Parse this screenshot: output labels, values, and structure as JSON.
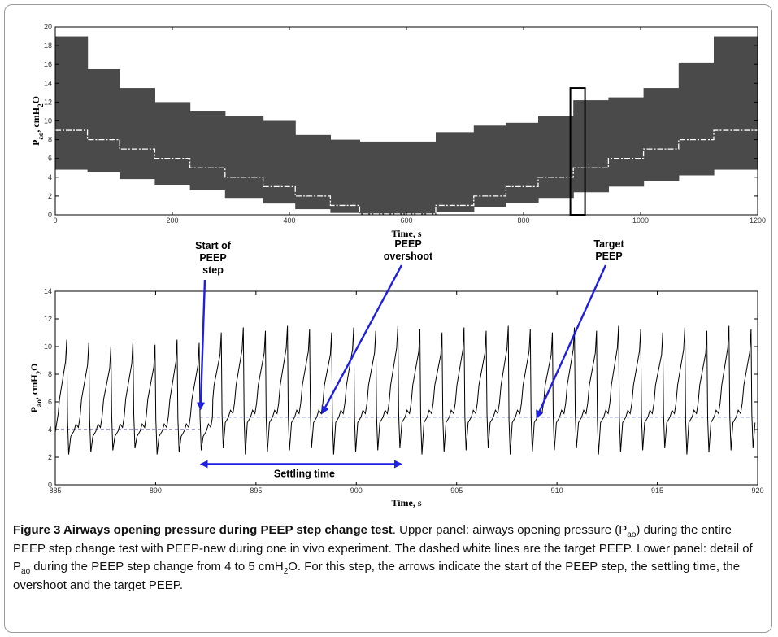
{
  "chart_data": [
    {
      "type": "area",
      "xlabel": "Time, s",
      "ylabel": "P_ao, cmH2O",
      "xlim": [
        0,
        1200
      ],
      "ylim": [
        0,
        20
      ],
      "xticks": [
        0,
        200,
        400,
        600,
        800,
        1000,
        1200
      ],
      "yticks": [
        0,
        2,
        4,
        6,
        8,
        10,
        12,
        14,
        16,
        18,
        20
      ],
      "grid": false,
      "target_peep_line": {
        "style": "dashed white",
        "segments": [
          {
            "x0": 0,
            "x1": 55,
            "y": 9
          },
          {
            "x0": 55,
            "x1": 110,
            "y": 8
          },
          {
            "x0": 110,
            "x1": 170,
            "y": 7
          },
          {
            "x0": 170,
            "x1": 230,
            "y": 6
          },
          {
            "x0": 230,
            "x1": 290,
            "y": 5
          },
          {
            "x0": 290,
            "x1": 355,
            "y": 4
          },
          {
            "x0": 355,
            "x1": 410,
            "y": 3
          },
          {
            "x0": 410,
            "x1": 470,
            "y": 2
          },
          {
            "x0": 470,
            "x1": 520,
            "y": 1
          },
          {
            "x0": 520,
            "x1": 650,
            "y": 0.1
          },
          {
            "x0": 650,
            "x1": 715,
            "y": 1
          },
          {
            "x0": 715,
            "x1": 770,
            "y": 2
          },
          {
            "x0": 770,
            "x1": 825,
            "y": 3
          },
          {
            "x0": 825,
            "x1": 885,
            "y": 4
          },
          {
            "x0": 885,
            "x1": 945,
            "y": 5
          },
          {
            "x0": 945,
            "x1": 1005,
            "y": 6
          },
          {
            "x0": 1005,
            "x1": 1065,
            "y": 7
          },
          {
            "x0": 1065,
            "x1": 1125,
            "y": 8
          },
          {
            "x0": 1125,
            "x1": 1200,
            "y": 9
          }
        ]
      },
      "pressure_envelope": [
        {
          "x0": 0,
          "x1": 55,
          "min": 4.8,
          "max": 19
        },
        {
          "x0": 55,
          "x1": 110,
          "min": 4.5,
          "max": 15.5
        },
        {
          "x0": 110,
          "x1": 170,
          "min": 3.8,
          "max": 13.5
        },
        {
          "x0": 170,
          "x1": 230,
          "min": 3.2,
          "max": 12
        },
        {
          "x0": 230,
          "x1": 290,
          "min": 2.6,
          "max": 11
        },
        {
          "x0": 290,
          "x1": 355,
          "min": 1.8,
          "max": 10.5
        },
        {
          "x0": 355,
          "x1": 410,
          "min": 1.2,
          "max": 10
        },
        {
          "x0": 410,
          "x1": 470,
          "min": 0.6,
          "max": 8.5
        },
        {
          "x0": 470,
          "x1": 520,
          "min": 0.2,
          "max": 8
        },
        {
          "x0": 520,
          "x1": 650,
          "min": 0,
          "max": 7.8
        },
        {
          "x0": 650,
          "x1": 715,
          "min": 0.3,
          "max": 8.8
        },
        {
          "x0": 715,
          "x1": 770,
          "min": 0.8,
          "max": 9.5
        },
        {
          "x0": 770,
          "x1": 825,
          "min": 1.3,
          "max": 9.8
        },
        {
          "x0": 825,
          "x1": 885,
          "min": 1.8,
          "max": 10.5
        },
        {
          "x0": 885,
          "x1": 945,
          "min": 2.4,
          "max": 12.2
        },
        {
          "x0": 945,
          "x1": 1005,
          "min": 3,
          "max": 12.5
        },
        {
          "x0": 1005,
          "x1": 1065,
          "min": 3.6,
          "max": 13.5
        },
        {
          "x0": 1065,
          "x1": 1125,
          "min": 4.2,
          "max": 16.2
        },
        {
          "x0": 1125,
          "x1": 1200,
          "min": 4.8,
          "max": 19
        }
      ],
      "highlight_box": {
        "x0": 880,
        "x1": 905,
        "y0": 0,
        "y1": 13.5
      }
    },
    {
      "type": "line",
      "xlabel": "Time, s",
      "ylabel": "P_ao, cmH2O",
      "xlim": [
        885,
        920
      ],
      "ylim": [
        0,
        14
      ],
      "xticks": [
        885,
        890,
        895,
        900,
        905,
        910,
        915,
        920
      ],
      "yticks": [
        0,
        2,
        4,
        6,
        8,
        10,
        12,
        14
      ],
      "grid": false,
      "breath_period_s": 1.1,
      "step_time_s": 892.2,
      "peep_before": 4,
      "peep_after": 5,
      "peak_before": 10.5,
      "peak_after": 11.5,
      "trough_min": 2.2,
      "dashed_reference_lines": [
        {
          "x0": 885,
          "x1": 892.2,
          "y": 4
        },
        {
          "x0": 892.2,
          "x1": 920,
          "y": 4.9
        }
      ],
      "annotations": [
        {
          "text": [
            "Start of",
            "PEEP",
            "step"
          ],
          "arrow_tip": {
            "x": 892.2,
            "y": 5.5
          }
        },
        {
          "text": [
            "PEEP",
            "overshoot"
          ],
          "arrow_tip": {
            "x": 898.3,
            "y": 5.2
          }
        },
        {
          "text": [
            "Target",
            "PEEP"
          ],
          "arrow_tip": {
            "x": 909,
            "y": 4.9
          }
        },
        {
          "text": [
            "Settling time"
          ],
          "range": [
            892.2,
            902.3
          ],
          "y": 1.5
        }
      ]
    }
  ],
  "caption": {
    "title": "Figure 3 Airways opening pressure during PEEP step change test",
    "body_1": ". Upper panel: airways opening pressure (P",
    "sub_1": "ao",
    "body_2": ") during the entire PEEP step change test with PEEP-new during one in vivo experiment. The dashed white lines are the target PEEP. Lower panel: detail of P",
    "sub_2": "ao",
    "body_3": " during the PEEP step change from 4 to 5 cmH",
    "sub_3": "2",
    "body_4": "O. For this step, the arrows indicate the start of the PEEP step, the settling time, the overshoot and the target PEEP."
  },
  "colors": {
    "envelope": "#4a4a4a",
    "arrow": "#1f1fe0",
    "reference_line": "#3b3b9c",
    "trace": "#000000"
  }
}
